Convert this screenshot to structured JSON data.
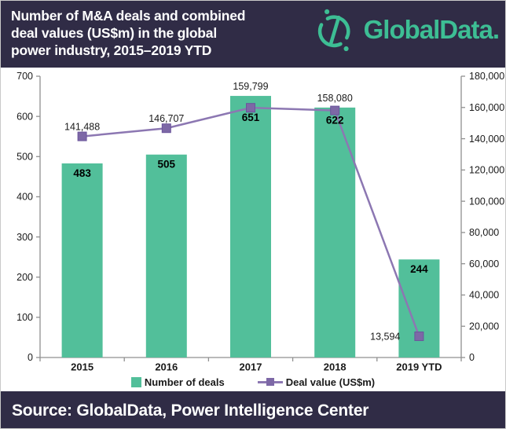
{
  "header": {
    "title_lines": [
      "Number of M&A deals and combined",
      "deal values (US$m) in the global",
      "power industry, 2015–2019 YTD"
    ],
    "logo_text": "GlobalData."
  },
  "footer": {
    "source_text": "Source: GlobalData, Power Intelligence Center"
  },
  "colors": {
    "header_bg": "#302C46",
    "logo_teal": "#3DBE94",
    "bar_fill": "#52BF9A",
    "line_stroke": "#8C77B2",
    "marker_fill": "#7D68A6",
    "marker_edge": "#6B559C",
    "axis": "#909090",
    "text_dark": "#1a1a1a"
  },
  "chart_data": {
    "type": "bar",
    "subtype": "combo-bar-line-dual-axis",
    "title": "Number of M&A deals and combined deal values (US$m) in the global power industry, 2015–2019 YTD",
    "categories": [
      "2015",
      "2016",
      "2017",
      "2018",
      "2019 YTD"
    ],
    "series": [
      {
        "name": "Number of deals",
        "type": "bar",
        "axis": "left",
        "values": [
          483,
          505,
          651,
          622,
          244
        ],
        "labels": [
          "483",
          "505",
          "651",
          "622",
          "244"
        ]
      },
      {
        "name": "Deal value (US$m)",
        "type": "line",
        "axis": "right",
        "values": [
          141488,
          146707,
          159799,
          158080,
          13594
        ],
        "labels": [
          "141,488",
          "146,707",
          "159,799",
          "158,080",
          "13,594"
        ],
        "label_positions": [
          "above",
          "above",
          "above",
          "above",
          "left"
        ]
      }
    ],
    "left_axis": {
      "min": 0,
      "max": 700,
      "step": 100
    },
    "right_axis": {
      "min": 0,
      "max": 180000,
      "step": 20000
    },
    "grid": false,
    "legend_position": "bottom"
  }
}
